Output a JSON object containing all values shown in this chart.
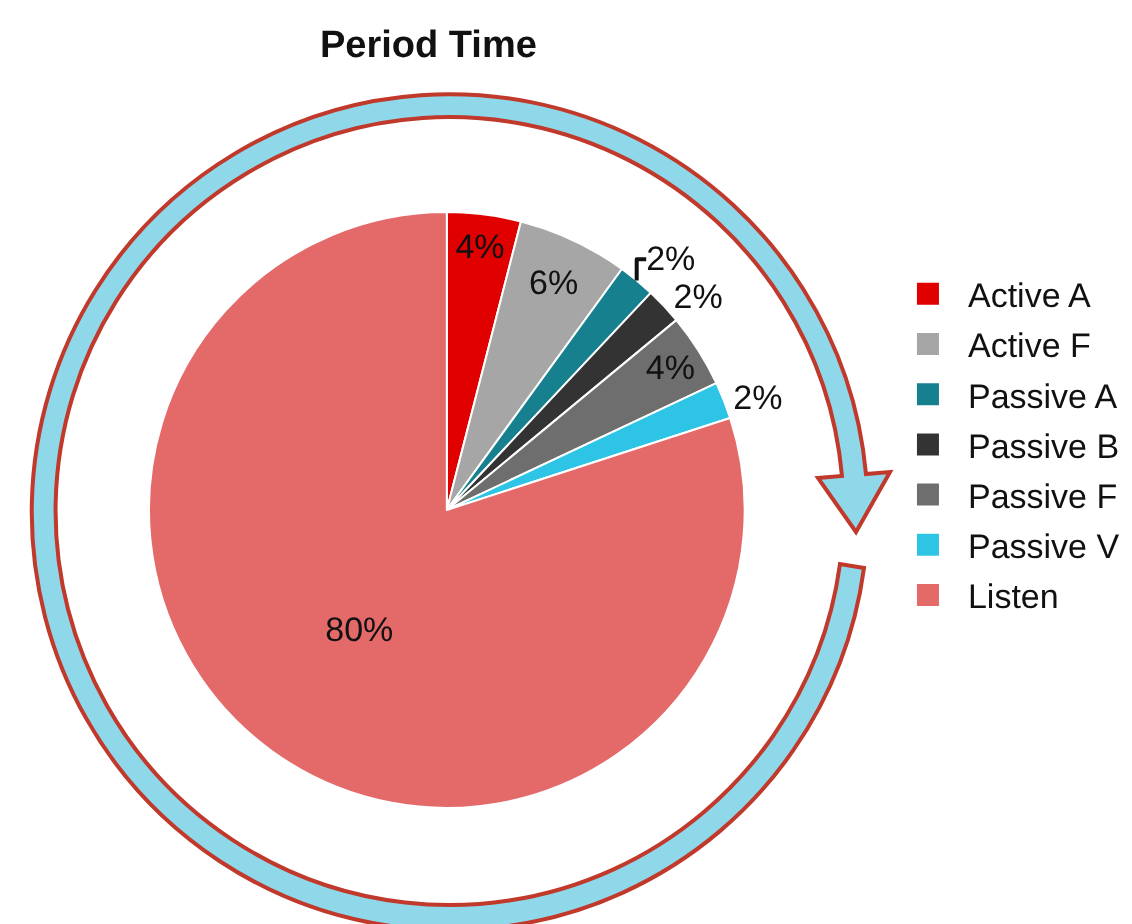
{
  "chart_data": {
    "type": "pie",
    "title": "Period Time",
    "categories": [
      "Active A",
      "Active F",
      "Passive A",
      "Passive B",
      "Passive F",
      "Passive V",
      "Listen"
    ],
    "values": [
      4,
      6,
      2,
      2,
      4,
      2,
      80
    ],
    "value_labels": [
      "4%",
      "6%",
      "2%",
      "2%",
      "4%",
      "2%",
      "80%"
    ],
    "colors": [
      "#e00000",
      "#a6a6a6",
      "#17808f",
      "#333333",
      "#6e6e6e",
      "#2ec4e6",
      "#e46a6a"
    ],
    "legend": "right"
  }
}
